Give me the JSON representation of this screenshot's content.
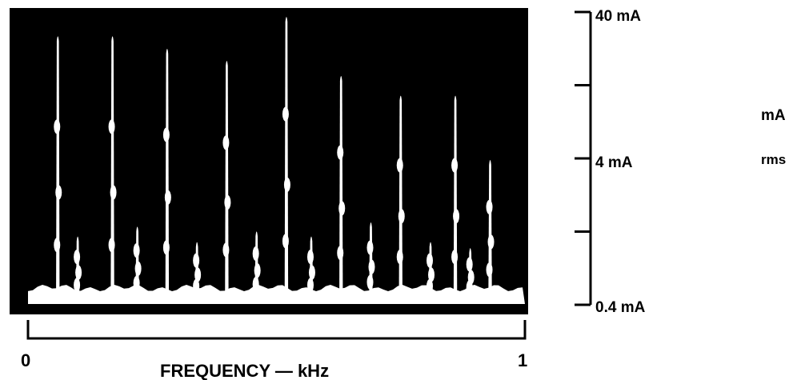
{
  "chart_data": {
    "type": "bar",
    "title": "",
    "xlabel": "FREQUENCY — kHz",
    "ylabel": "mA rms",
    "ylabel_parts": [
      "mA",
      "rms"
    ],
    "x_ticks": [
      "0",
      "1"
    ],
    "xlim": [
      0,
      1
    ],
    "y_ticks": [
      "40 mA",
      "4 mA",
      "0.4 mA"
    ],
    "y_scale": "log",
    "ylim": [
      0.4,
      40
    ],
    "series": [
      {
        "values": [
          {
            "x": 0.06,
            "y": 28
          },
          {
            "x": 0.17,
            "y": 28
          },
          {
            "x": 0.28,
            "y": 23
          },
          {
            "x": 0.4,
            "y": 19
          },
          {
            "x": 0.52,
            "y": 38
          },
          {
            "x": 0.63,
            "y": 15
          },
          {
            "x": 0.75,
            "y": 11
          },
          {
            "x": 0.86,
            "y": 11
          },
          {
            "x": 0.93,
            "y": 4
          },
          {
            "x": 0.1,
            "y": 1.2
          },
          {
            "x": 0.22,
            "y": 1.4
          },
          {
            "x": 0.34,
            "y": 1.1
          },
          {
            "x": 0.46,
            "y": 1.3
          },
          {
            "x": 0.57,
            "y": 1.2
          },
          {
            "x": 0.69,
            "y": 1.5
          },
          {
            "x": 0.81,
            "y": 1.1
          },
          {
            "x": 0.89,
            "y": 1.0
          }
        ]
      }
    ],
    "colors": {
      "background": "#000000",
      "trace": "#ffffff"
    }
  }
}
